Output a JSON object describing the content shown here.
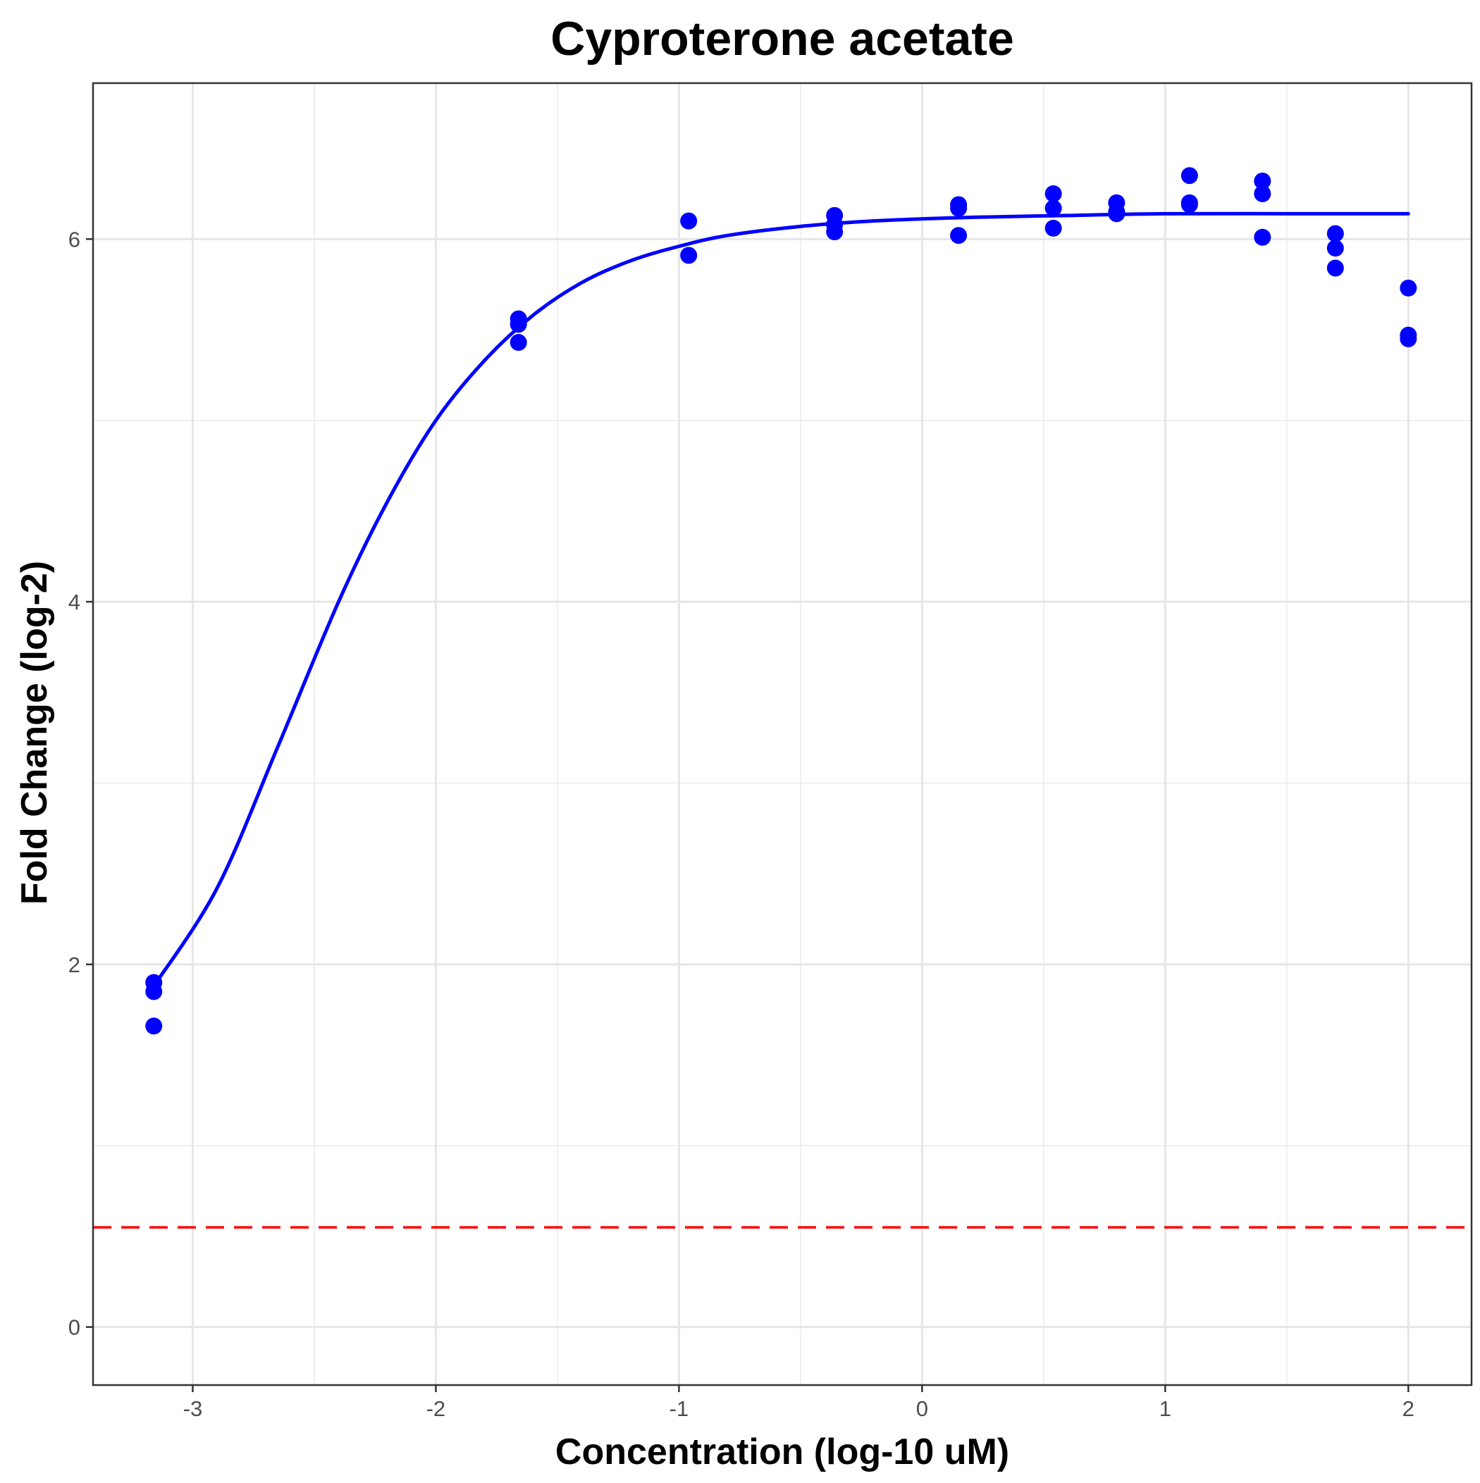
{
  "chart_data": {
    "type": "scatter",
    "title": "Cyproterone acetate",
    "xlabel": "Concentration (log-10 uM)",
    "ylabel": "Fold Change (log-2)",
    "xlim": [
      -3.41,
      2.26
    ],
    "ylim": [
      -0.32,
      6.86
    ],
    "x_ticks": [
      -3,
      -2,
      -1,
      0,
      1,
      2
    ],
    "x_minor_ticks": [
      -2.5,
      -1.5,
      -0.5,
      0.5,
      1.5
    ],
    "y_ticks": [
      0,
      2,
      4,
      6
    ],
    "y_minor_ticks": [
      1,
      3,
      5
    ],
    "grid": true,
    "legend": "none",
    "point_color": "#0000ff",
    "curve_color": "#0000ff",
    "threshold_color": "#ff0000",
    "threshold_y": 0.55,
    "series": [
      {
        "kind": "points",
        "x": [
          -3.16,
          -3.16,
          -3.16,
          -1.66,
          -1.66,
          -1.66,
          -0.96,
          -0.96,
          -0.36,
          -0.36,
          -0.36,
          0.15,
          0.15,
          0.15,
          0.54,
          0.54,
          0.54,
          0.8,
          0.8,
          0.8,
          1.1,
          1.1,
          1.1,
          1.4,
          1.4,
          1.4,
          1.7,
          1.7,
          1.7,
          2.0,
          2.0,
          2.0
        ],
        "y": [
          1.9,
          1.85,
          1.66,
          5.56,
          5.53,
          5.43,
          6.1,
          5.91,
          6.13,
          6.08,
          6.04,
          6.19,
          6.17,
          6.02,
          6.25,
          6.17,
          6.06,
          6.2,
          6.15,
          6.14,
          6.35,
          6.2,
          6.19,
          6.32,
          6.25,
          6.01,
          6.03,
          5.95,
          5.84,
          5.73,
          5.47,
          5.45
        ]
      },
      {
        "kind": "fit-curve",
        "x": [
          -3.16,
          -2.9,
          -2.65,
          -2.4,
          -2.2,
          -2.0,
          -1.8,
          -1.6,
          -1.4,
          -1.2,
          -1.0,
          -0.8,
          -0.5,
          -0.2,
          0.2,
          0.6,
          1.0,
          1.5,
          2.0
        ],
        "y": [
          1.88,
          2.42,
          3.2,
          4.0,
          4.55,
          5.0,
          5.33,
          5.58,
          5.76,
          5.88,
          5.96,
          6.02,
          6.07,
          6.1,
          6.12,
          6.13,
          6.14,
          6.14,
          6.14
        ]
      }
    ]
  }
}
